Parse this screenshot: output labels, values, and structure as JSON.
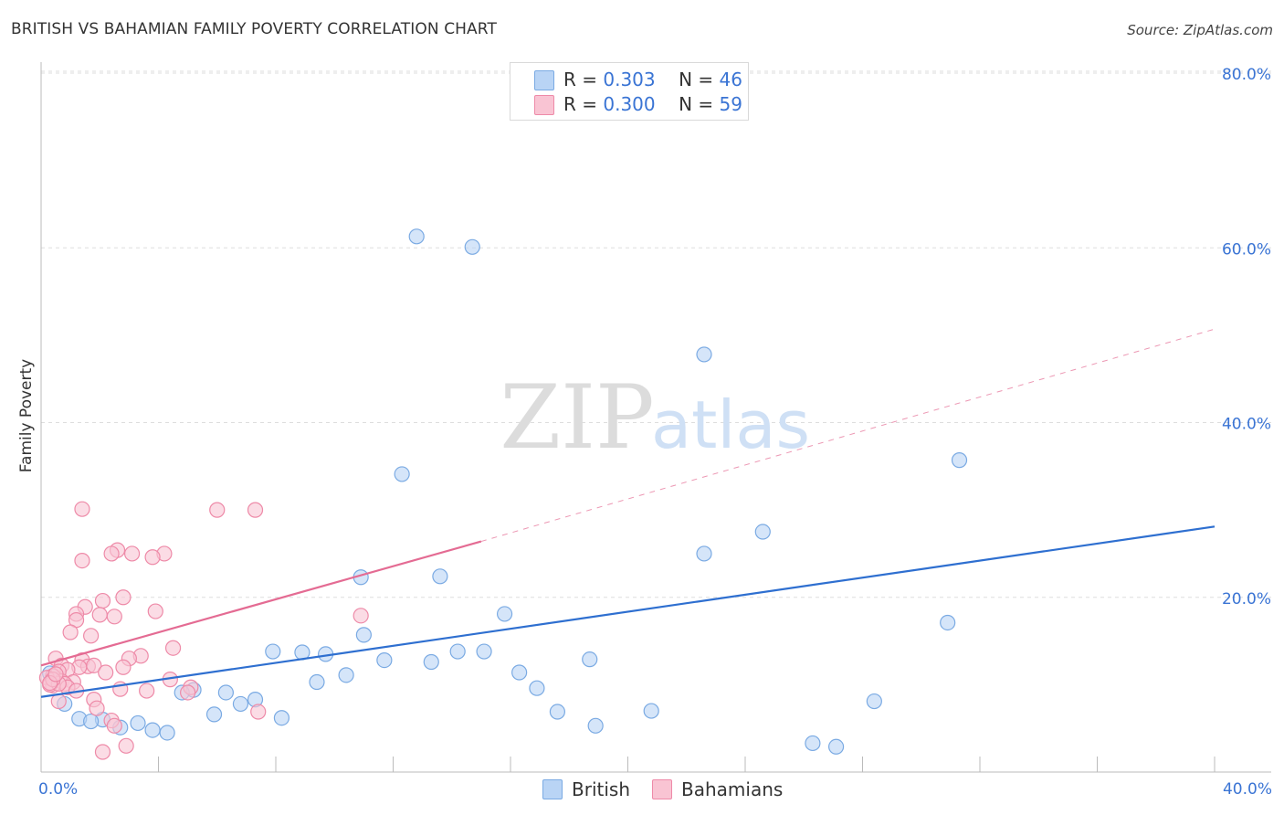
{
  "title": "BRITISH VS BAHAMIAN FAMILY POVERTY CORRELATION CHART",
  "source": "Source: ZipAtlas.com",
  "watermark": {
    "zip": "ZIP",
    "atlas": "atlas"
  },
  "legend": {
    "british": {
      "r_label": "R =",
      "r_value": "0.303",
      "n_label": "N =",
      "n_value": "46"
    },
    "bahamians": {
      "r_label": "R =",
      "r_value": "0.300",
      "n_label": "N =",
      "n_value": "59"
    }
  },
  "colors": {
    "british_fill": "#b9d4f5",
    "british_stroke": "#7aaae3",
    "british_line": "#2e6fd0",
    "bahamians_fill": "#f9c4d3",
    "bahamians_stroke": "#ee8aa8",
    "bahamians_line": "#e46b93",
    "axis_label": "#3a74d4",
    "grid": "#dddddd"
  },
  "chart_data": {
    "type": "scatter",
    "ylabel": "Family Poverty",
    "xlabel": "",
    "xlim": [
      0,
      40
    ],
    "ylim": [
      0,
      80
    ],
    "x_tick_labels": [
      "0.0%",
      "40.0%"
    ],
    "y_ticks": [
      20,
      40,
      60,
      80
    ],
    "y_tick_labels": [
      "20.0%",
      "40.0%",
      "60.0%",
      "80.0%"
    ],
    "grid": "horizontal dashed",
    "legend_position": "bottom-center",
    "series": [
      {
        "name": "British",
        "points": [
          [
            12.8,
            61.3
          ],
          [
            14.7,
            60.1
          ],
          [
            22.6,
            47.8
          ],
          [
            31.3,
            35.7
          ],
          [
            12.3,
            34.1
          ],
          [
            24.6,
            27.5
          ],
          [
            22.6,
            25.0
          ],
          [
            10.9,
            22.3
          ],
          [
            13.6,
            22.4
          ],
          [
            15.8,
            18.1
          ],
          [
            30.9,
            17.1
          ],
          [
            11.0,
            15.7
          ],
          [
            7.9,
            13.8
          ],
          [
            8.9,
            13.7
          ],
          [
            9.7,
            13.5
          ],
          [
            14.2,
            13.8
          ],
          [
            15.1,
            13.8
          ],
          [
            11.7,
            12.8
          ],
          [
            13.3,
            12.6
          ],
          [
            18.7,
            12.9
          ],
          [
            16.3,
            11.4
          ],
          [
            10.4,
            11.1
          ],
          [
            9.4,
            10.3
          ],
          [
            16.9,
            9.6
          ],
          [
            5.2,
            9.4
          ],
          [
            4.8,
            9.1
          ],
          [
            6.3,
            9.1
          ],
          [
            7.3,
            8.3
          ],
          [
            6.8,
            7.8
          ],
          [
            28.4,
            8.1
          ],
          [
            17.6,
            6.9
          ],
          [
            20.8,
            7.0
          ],
          [
            5.9,
            6.6
          ],
          [
            8.2,
            6.2
          ],
          [
            18.9,
            5.3
          ],
          [
            1.3,
            6.1
          ],
          [
            2.1,
            6.0
          ],
          [
            1.7,
            5.8
          ],
          [
            3.3,
            5.6
          ],
          [
            2.7,
            5.1
          ],
          [
            3.8,
            4.8
          ],
          [
            4.3,
            4.5
          ],
          [
            26.3,
            3.3
          ],
          [
            27.1,
            2.9
          ],
          [
            0.8,
            7.8
          ],
          [
            0.3,
            11.3
          ]
        ]
      },
      {
        "name": "Bahamians",
        "points": [
          [
            1.4,
            30.1
          ],
          [
            6.0,
            30.0
          ],
          [
            7.3,
            30.0
          ],
          [
            2.6,
            25.4
          ],
          [
            2.4,
            25.0
          ],
          [
            3.1,
            25.0
          ],
          [
            4.2,
            25.0
          ],
          [
            3.8,
            24.6
          ],
          [
            1.4,
            24.2
          ],
          [
            2.8,
            20.0
          ],
          [
            2.1,
            19.6
          ],
          [
            1.5,
            18.9
          ],
          [
            1.2,
            18.1
          ],
          [
            2.5,
            17.8
          ],
          [
            3.9,
            18.4
          ],
          [
            2.0,
            18.0
          ],
          [
            1.2,
            17.4
          ],
          [
            1.0,
            16.0
          ],
          [
            1.7,
            15.6
          ],
          [
            10.9,
            17.9
          ],
          [
            4.5,
            14.2
          ],
          [
            3.4,
            13.3
          ],
          [
            3.0,
            13.0
          ],
          [
            0.5,
            13.0
          ],
          [
            1.4,
            12.8
          ],
          [
            0.7,
            12.2
          ],
          [
            1.6,
            12.1
          ],
          [
            1.8,
            12.2
          ],
          [
            1.3,
            12.0
          ],
          [
            2.8,
            12.0
          ],
          [
            0.9,
            11.7
          ],
          [
            0.6,
            11.5
          ],
          [
            2.2,
            11.4
          ],
          [
            0.4,
            11.0
          ],
          [
            0.2,
            10.8
          ],
          [
            0.7,
            10.4
          ],
          [
            1.1,
            10.3
          ],
          [
            0.8,
            10.1
          ],
          [
            0.4,
            9.9
          ],
          [
            0.9,
            9.7
          ],
          [
            0.3,
            10.0
          ],
          [
            0.6,
            10.1
          ],
          [
            1.2,
            9.3
          ],
          [
            2.7,
            9.5
          ],
          [
            3.6,
            9.3
          ],
          [
            4.4,
            10.6
          ],
          [
            5.1,
            9.7
          ],
          [
            5.0,
            9.1
          ],
          [
            1.8,
            8.3
          ],
          [
            0.6,
            8.1
          ],
          [
            1.9,
            7.3
          ],
          [
            7.4,
            6.9
          ],
          [
            2.4,
            5.9
          ],
          [
            2.5,
            5.3
          ],
          [
            2.1,
            2.3
          ],
          [
            2.9,
            3.0
          ],
          [
            0.4,
            10.6
          ],
          [
            0.3,
            10.2
          ],
          [
            0.5,
            11.2
          ]
        ]
      }
    ],
    "trendlines": [
      {
        "series": "British",
        "x": [
          0,
          40
        ],
        "y": [
          8.6,
          28.1
        ],
        "style": "solid"
      },
      {
        "series": "Bahamians",
        "x": [
          0,
          15
        ],
        "y": [
          12.2,
          26.4
        ],
        "style": "solid"
      },
      {
        "series": "Bahamians",
        "x": [
          15,
          40
        ],
        "y": [
          26.4,
          50.7
        ],
        "style": "dashed"
      }
    ]
  }
}
